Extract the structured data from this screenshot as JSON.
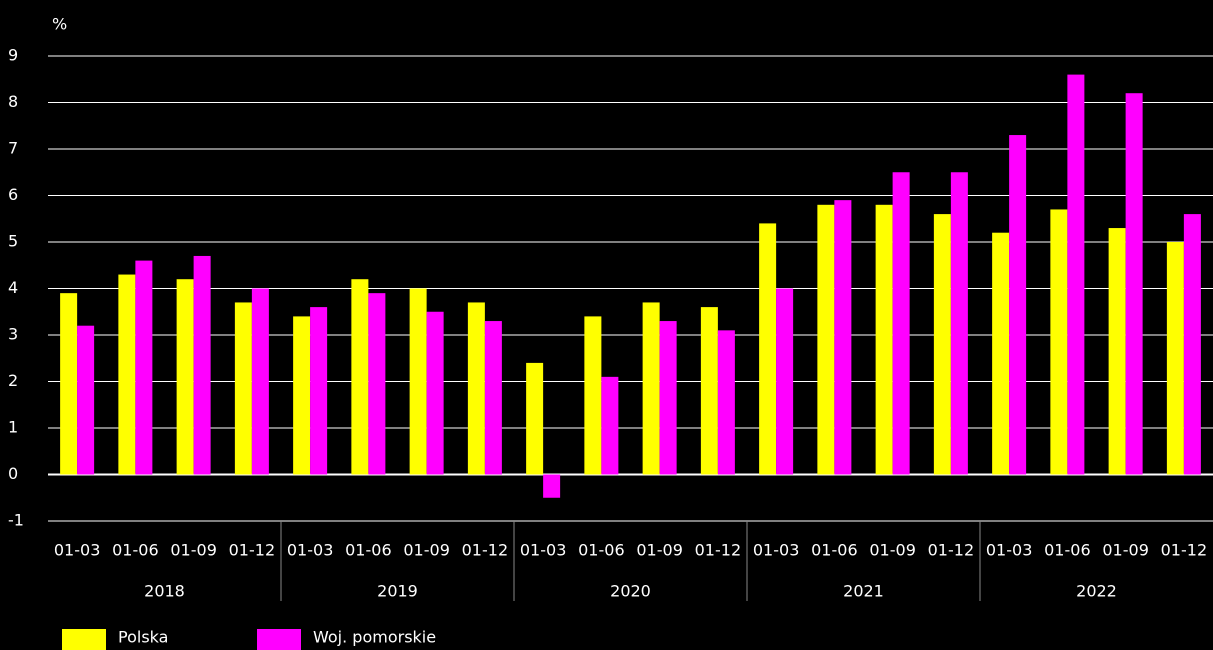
{
  "chart_data": {
    "type": "bar",
    "y_label": "%",
    "categories": [
      "01-03",
      "01-06",
      "01-09",
      "01-12",
      "01-03",
      "01-06",
      "01-09",
      "01-12",
      "01-03",
      "01-06",
      "01-09",
      "01-12",
      "01-03",
      "01-06",
      "01-09",
      "01-12",
      "01-03",
      "01-06",
      "01-09",
      "01-12"
    ],
    "groups": [
      "2018",
      "2019",
      "2020",
      "2021",
      "2022"
    ],
    "series": [
      {
        "name": "Polska",
        "color": "#ffff00",
        "values": [
          3.9,
          4.3,
          4.2,
          3.7,
          3.4,
          4.2,
          4.0,
          3.7,
          2.4,
          3.4,
          3.7,
          3.6,
          5.4,
          5.8,
          5.8,
          5.6,
          5.2,
          5.7,
          5.3,
          5.0
        ]
      },
      {
        "name": "Woj. pomorskie",
        "color": "#ff00ff",
        "values": [
          3.2,
          4.6,
          4.7,
          4.0,
          3.6,
          3.9,
          3.5,
          3.3,
          -0.5,
          2.1,
          3.3,
          3.1,
          4.0,
          5.9,
          6.5,
          6.5,
          7.3,
          8.6,
          8.2,
          5.6
        ]
      }
    ],
    "ylim": [
      -1,
      9
    ],
    "yticks": [
      -1,
      0,
      1,
      2,
      3,
      4,
      5,
      6,
      7,
      8,
      9
    ],
    "grid": true,
    "legend": "bottom"
  }
}
